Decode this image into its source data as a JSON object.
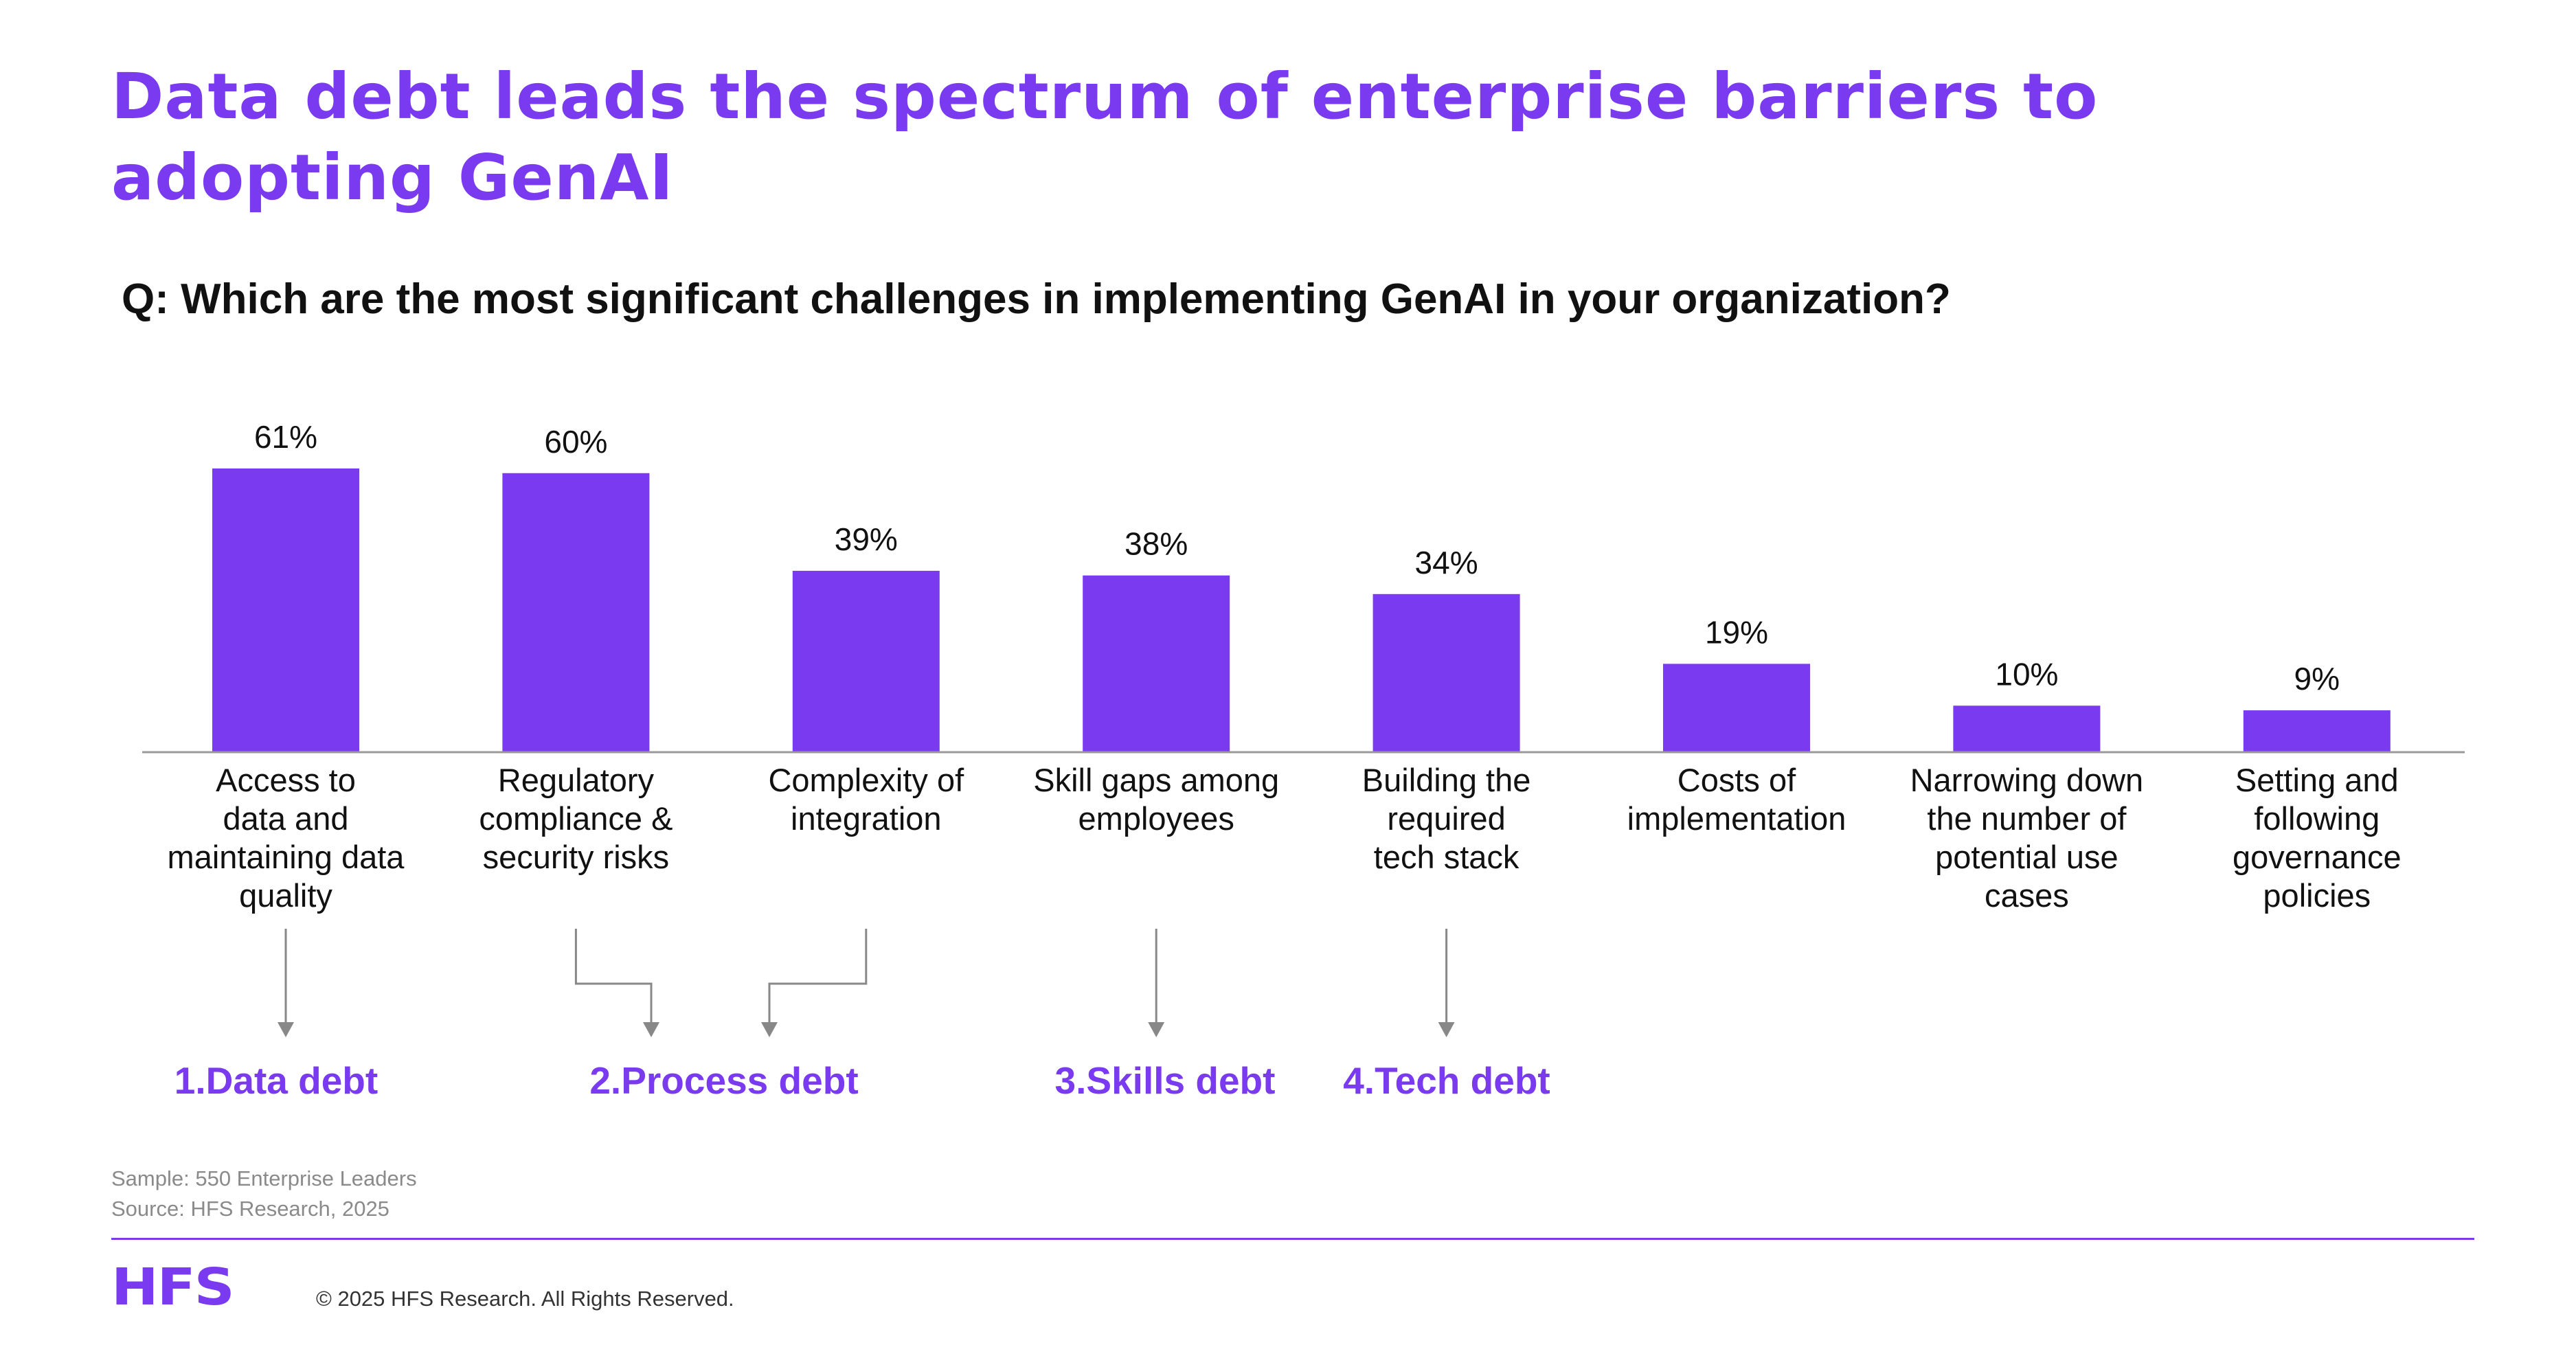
{
  "title": "Data debt leads the spectrum of enterprise barriers to adopting GenAI",
  "question": "Q: Which are the most significant challenges in implementing GenAI in your organization?",
  "colors": {
    "accent": "#7a3af0",
    "bar": "#7a3af0",
    "axis": "#999999",
    "arrow": "#888888"
  },
  "chart_data": {
    "type": "bar",
    "categories": [
      "Access to data and maintaining data quality",
      "Regulatory compliance & security risks",
      "Complexity of integration",
      "Skill gaps among employees",
      "Building the required tech stack",
      "Costs of implementation",
      "Narrowing down the number of potential use cases",
      "Setting and following governance policies"
    ],
    "category_lines": [
      [
        "Access to",
        "data and",
        "maintaining data",
        "quality"
      ],
      [
        "Regulatory",
        "compliance &",
        "security risks"
      ],
      [
        "Complexity of",
        "integration"
      ],
      [
        "Skill gaps among",
        "employees"
      ],
      [
        "Building the",
        "required",
        "tech stack"
      ],
      [
        "Costs of",
        "implementation"
      ],
      [
        "Narrowing down",
        "the number of",
        "potential use",
        "cases"
      ],
      [
        "Setting and",
        "following",
        "governance",
        "policies"
      ]
    ],
    "values": [
      61,
      60,
      39,
      38,
      34,
      19,
      10,
      9
    ],
    "data_labels": [
      "61%",
      "60%",
      "39%",
      "38%",
      "34%",
      "19%",
      "10%",
      "9%"
    ],
    "unit": "%",
    "ylim": [
      0,
      61
    ],
    "grid": false,
    "legend": "none",
    "groups": [
      {
        "label": "1.Data debt",
        "categories": [
          0
        ]
      },
      {
        "label": "2.Process debt",
        "categories": [
          1,
          2
        ]
      },
      {
        "label": "3.Skills debt",
        "categories": [
          3
        ]
      },
      {
        "label": "4.Tech debt",
        "categories": [
          4
        ]
      }
    ]
  },
  "footer": {
    "sample": "Sample: 550 Enterprise Leaders",
    "source": "Source: HFS Research, 2025",
    "logo": "HFS",
    "copyright": "© 2025 HFS Research. All Rights Reserved."
  }
}
